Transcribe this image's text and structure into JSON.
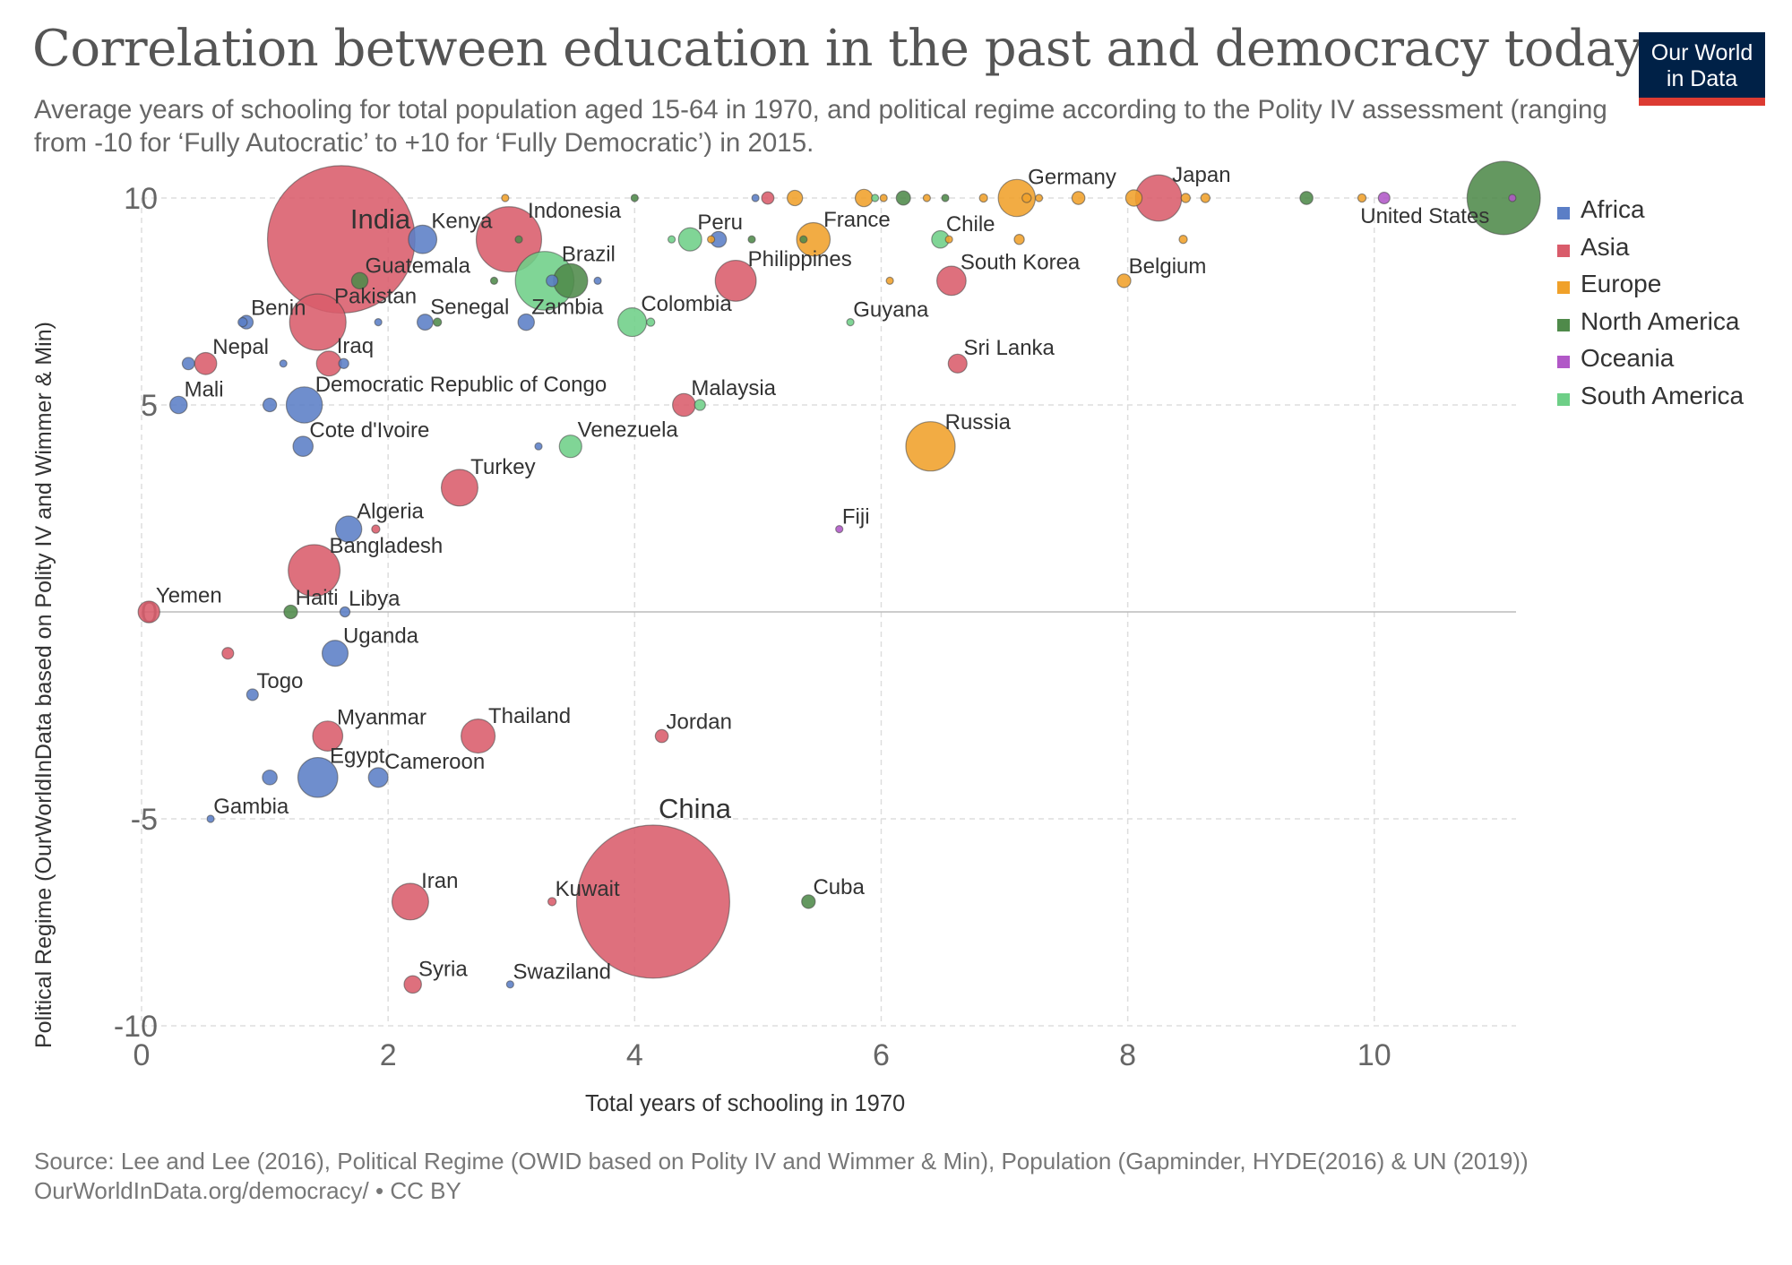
{
  "title": "Correlation between education in the past and democracy today",
  "subtitle": "Average years of schooling for total population aged 15-64 in 1970, and political regime according to the Polity IV assessment (ranging from -10 for ‘Fully Autocratic’ to +10 for ‘Fully Democratic’) in 2015.",
  "logo": {
    "line1": "Our World",
    "line2": "in Data",
    "bg": "#002147",
    "bar": "#dc3b32"
  },
  "source": {
    "line1": "Source: Lee and Lee (2016), Political Regime (OWID based on Polity IV and Wimmer & Min), Population (Gapminder, HYDE(2016) & UN (2019))",
    "line2": "OurWorldInData.org/democracy/ • CC BY"
  },
  "legend": [
    {
      "name": "Africa",
      "color": "#5b7ec6"
    },
    {
      "name": "Asia",
      "color": "#d95c6b"
    },
    {
      "name": "Europe",
      "color": "#f0a12a"
    },
    {
      "name": "North America",
      "color": "#4f8a4a"
    },
    {
      "name": "Oceania",
      "color": "#b158c7"
    },
    {
      "name": "South America",
      "color": "#6ecf87"
    }
  ],
  "chart_data": {
    "type": "scatter",
    "title": "Correlation between education in the past and democracy today",
    "xlabel": "Total years of schooling in 1970",
    "ylabel": "Political Regime (OurWorldInData based on Polity IV and Wimmer & Min)",
    "xlim": [
      0,
      11.15
    ],
    "ylim": [
      -10,
      10
    ],
    "xticks": [
      0,
      2,
      4,
      6,
      8,
      10
    ],
    "yticks": [
      -10,
      -5,
      0,
      5,
      10
    ],
    "grid": true,
    "legend_position": "right",
    "size_encoding": "population",
    "points": [
      {
        "label": "India",
        "x": 1.62,
        "y": 9,
        "region": "Asia",
        "size": 1300
      },
      {
        "label": "China",
        "x": 4.15,
        "y": -7,
        "region": "Asia",
        "size": 1400
      },
      {
        "label": "United States",
        "x": 11.05,
        "y": 10,
        "region": "North America",
        "size": 320
      },
      {
        "label": "Indonesia",
        "x": 2.98,
        "y": 9,
        "region": "Asia",
        "size": 255
      },
      {
        "label": "Brazil",
        "x": 3.27,
        "y": 8,
        "region": "South America",
        "size": 205
      },
      {
        "label": "Pakistan",
        "x": 1.43,
        "y": 7,
        "region": "Asia",
        "size": 190
      },
      {
        "label": "Bangladesh",
        "x": 1.4,
        "y": 1,
        "region": "Asia",
        "size": 160
      },
      {
        "label": "Russia",
        "x": 6.4,
        "y": 4,
        "region": "Europe",
        "size": 145
      },
      {
        "label": "Japan",
        "x": 8.25,
        "y": 10,
        "region": "Asia",
        "size": 127
      },
      {
        "label": "Philippines",
        "x": 4.82,
        "y": 8,
        "region": "Asia",
        "size": 100
      },
      {
        "label": "Egypt",
        "x": 1.43,
        "y": -4,
        "region": "Africa",
        "size": 95
      },
      {
        "label": "Democratic Republic of Congo",
        "x": 1.32,
        "y": 5,
        "region": "Africa",
        "size": 78
      },
      {
        "label": "Iran",
        "x": 2.18,
        "y": -7,
        "region": "Asia",
        "size": 80
      },
      {
        "label": "Turkey",
        "x": 2.58,
        "y": 3,
        "region": "Asia",
        "size": 80
      },
      {
        "label": "Germany",
        "x": 7.1,
        "y": 10,
        "region": "Europe",
        "size": 82
      },
      {
        "label": "Thailand",
        "x": 2.73,
        "y": -3,
        "region": "Asia",
        "size": 69
      },
      {
        "label": "France",
        "x": 5.45,
        "y": 9,
        "region": "Europe",
        "size": 67
      },
      {
        "label": "Myanmar",
        "x": 1.51,
        "y": -3,
        "region": "Asia",
        "size": 54
      },
      {
        "label": "South Korea",
        "x": 6.57,
        "y": 8,
        "region": "Asia",
        "size": 51
      },
      {
        "label": "Colombia",
        "x": 3.98,
        "y": 7,
        "region": "South America",
        "size": 49
      },
      {
        "label": "Kenya",
        "x": 2.28,
        "y": 9,
        "region": "Africa",
        "size": 48
      },
      {
        "label": "Iraq",
        "x": 1.52,
        "y": 6,
        "region": "Asia",
        "size": 37
      },
      {
        "label": "Uganda",
        "x": 1.57,
        "y": -1,
        "region": "Africa",
        "size": 40
      },
      {
        "label": "Algeria",
        "x": 1.68,
        "y": 2,
        "region": "Africa",
        "size": 41
      },
      {
        "label": "Peru",
        "x": 4.45,
        "y": 9,
        "region": "South America",
        "size": 32
      },
      {
        "label": "Malaysia",
        "x": 4.4,
        "y": 5,
        "region": "Asia",
        "size": 31
      },
      {
        "label": "Venezuela",
        "x": 3.48,
        "y": 4,
        "region": "South America",
        "size": 30
      },
      {
        "label": "Cameroon",
        "x": 1.92,
        "y": -4,
        "region": "Africa",
        "size": 23
      },
      {
        "label": "Cote d'Ivoire",
        "x": 1.31,
        "y": 4,
        "region": "Africa",
        "size": 24
      },
      {
        "label": "Nepal",
        "x": 0.52,
        "y": 6,
        "region": "Asia",
        "size": 29
      },
      {
        "label": "Yemen",
        "x": 0.06,
        "y": 0,
        "region": "Asia",
        "size": 28
      },
      {
        "label": "Mali",
        "x": 0.3,
        "y": 5,
        "region": "Africa",
        "size": 18
      },
      {
        "label": "Chile",
        "x": 6.48,
        "y": 9,
        "region": "South America",
        "size": 18
      },
      {
        "label": "Guatemala",
        "x": 1.77,
        "y": 8,
        "region": "North America",
        "size": 16
      },
      {
        "label": "Zambia",
        "x": 3.12,
        "y": 7,
        "region": "Africa",
        "size": 16
      },
      {
        "label": "Senegal",
        "x": 2.3,
        "y": 7,
        "region": "Africa",
        "size": 15
      },
      {
        "label": "Sri Lanka",
        "x": 6.62,
        "y": 6,
        "region": "Asia",
        "size": 21
      },
      {
        "label": "Cuba",
        "x": 5.41,
        "y": -7,
        "region": "North America",
        "size": 11
      },
      {
        "label": "Benin",
        "x": 0.85,
        "y": 7,
        "region": "Africa",
        "size": 11
      },
      {
        "label": "Haiti",
        "x": 1.21,
        "y": 0,
        "region": "North America",
        "size": 11
      },
      {
        "label": "Belgium",
        "x": 7.97,
        "y": 8,
        "region": "Europe",
        "size": 11
      },
      {
        "label": "Syria",
        "x": 2.2,
        "y": -9,
        "region": "Asia",
        "size": 18
      },
      {
        "label": "Togo",
        "x": 0.9,
        "y": -2,
        "region": "Africa",
        "size": 8
      },
      {
        "label": "Libya",
        "x": 1.65,
        "y": 0,
        "region": "Africa",
        "size": 6
      },
      {
        "label": "Jordan",
        "x": 4.22,
        "y": -3,
        "region": "Asia",
        "size": 10
      },
      {
        "label": "Kuwait",
        "x": 3.33,
        "y": -7,
        "region": "Asia",
        "size": 4
      },
      {
        "label": "Guyana",
        "x": 5.75,
        "y": 7,
        "region": "South America",
        "size": 0.8
      },
      {
        "label": "Fiji",
        "x": 5.66,
        "y": 2,
        "region": "Oceania",
        "size": 0.9
      },
      {
        "label": "Gambia",
        "x": 0.56,
        "y": -5,
        "region": "Africa",
        "size": 2
      },
      {
        "label": "Swaziland",
        "x": 2.99,
        "y": -9,
        "region": "Africa",
        "size": 1.3
      },
      {
        "label": "",
        "x": 0.38,
        "y": 6,
        "region": "Africa",
        "size": 9
      },
      {
        "label": "",
        "x": 0.82,
        "y": 7,
        "region": "Africa",
        "size": 5
      },
      {
        "label": "",
        "x": 1.04,
        "y": 5,
        "region": "Africa",
        "size": 11
      },
      {
        "label": "",
        "x": 1.15,
        "y": 6,
        "region": "Africa",
        "size": 1.5
      },
      {
        "label": "",
        "x": 1.92,
        "y": 7,
        "region": "Africa",
        "size": 2
      },
      {
        "label": "",
        "x": 1.64,
        "y": 6,
        "region": "Africa",
        "size": 6
      },
      {
        "label": "",
        "x": 1.04,
        "y": -4,
        "region": "Africa",
        "size": 13
      },
      {
        "label": "",
        "x": 0.7,
        "y": -1,
        "region": "Asia",
        "size": 8
      },
      {
        "label": "",
        "x": 1.9,
        "y": 2,
        "region": "Asia",
        "size": 4
      },
      {
        "label": "",
        "x": 2.4,
        "y": 7,
        "region": "North America",
        "size": 4
      },
      {
        "label": "",
        "x": 2.86,
        "y": 8,
        "region": "North America",
        "size": 3
      },
      {
        "label": "",
        "x": 3.06,
        "y": 9,
        "region": "North America",
        "size": 3
      },
      {
        "label": "",
        "x": 3.48,
        "y": 8,
        "region": "North America",
        "size": 70
      },
      {
        "label": "",
        "x": 3.33,
        "y": 8,
        "region": "Africa",
        "size": 8
      },
      {
        "label": "",
        "x": 3.7,
        "y": 8,
        "region": "Africa",
        "size": 2
      },
      {
        "label": "",
        "x": 3.22,
        "y": 4,
        "region": "Africa",
        "size": 3
      },
      {
        "label": "",
        "x": 2.95,
        "y": 10,
        "region": "Europe",
        "size": 3
      },
      {
        "label": "",
        "x": 4.0,
        "y": 10,
        "region": "North America",
        "size": 2
      },
      {
        "label": "",
        "x": 4.13,
        "y": 7,
        "region": "South America",
        "size": 4
      },
      {
        "label": "",
        "x": 4.53,
        "y": 5,
        "region": "South America",
        "size": 7
      },
      {
        "label": "",
        "x": 4.3,
        "y": 9,
        "region": "South America",
        "size": 3
      },
      {
        "label": "",
        "x": 4.68,
        "y": 9,
        "region": "Africa",
        "size": 15
      },
      {
        "label": "",
        "x": 4.62,
        "y": 9,
        "region": "Europe",
        "size": 3
      },
      {
        "label": "",
        "x": 4.95,
        "y": 9,
        "region": "North America",
        "size": 3
      },
      {
        "label": "",
        "x": 4.98,
        "y": 10,
        "region": "Africa",
        "size": 1
      },
      {
        "label": "",
        "x": 5.08,
        "y": 10,
        "region": "Asia",
        "size": 9
      },
      {
        "label": "",
        "x": 5.3,
        "y": 10,
        "region": "Europe",
        "size": 14
      },
      {
        "label": "",
        "x": 5.37,
        "y": 9,
        "region": "North America",
        "size": 2
      },
      {
        "label": "",
        "x": 5.86,
        "y": 10,
        "region": "Europe",
        "size": 18
      },
      {
        "label": "",
        "x": 5.95,
        "y": 10,
        "region": "South America",
        "size": 3
      },
      {
        "label": "",
        "x": 6.02,
        "y": 10,
        "region": "Europe",
        "size": 3
      },
      {
        "label": "",
        "x": 6.07,
        "y": 8,
        "region": "Europe",
        "size": 2
      },
      {
        "label": "",
        "x": 6.18,
        "y": 10,
        "region": "North America",
        "size": 12
      },
      {
        "label": "",
        "x": 6.37,
        "y": 10,
        "region": "Europe",
        "size": 2
      },
      {
        "label": "",
        "x": 6.52,
        "y": 10,
        "region": "North America",
        "size": 2
      },
      {
        "label": "",
        "x": 6.55,
        "y": 9,
        "region": "Europe",
        "size": 3
      },
      {
        "label": "",
        "x": 6.83,
        "y": 10,
        "region": "Europe",
        "size": 4
      },
      {
        "label": "",
        "x": 7.12,
        "y": 9,
        "region": "Europe",
        "size": 6
      },
      {
        "label": "",
        "x": 7.18,
        "y": 10,
        "region": "Europe",
        "size": 5
      },
      {
        "label": "",
        "x": 7.28,
        "y": 10,
        "region": "Europe",
        "size": 3
      },
      {
        "label": "",
        "x": 7.6,
        "y": 10,
        "region": "Europe",
        "size": 10
      },
      {
        "label": "",
        "x": 8.05,
        "y": 10,
        "region": "Europe",
        "size": 16
      },
      {
        "label": "",
        "x": 8.45,
        "y": 9,
        "region": "Europe",
        "size": 4
      },
      {
        "label": "",
        "x": 8.47,
        "y": 10,
        "region": "Europe",
        "size": 5
      },
      {
        "label": "",
        "x": 8.63,
        "y": 10,
        "region": "Europe",
        "size": 5
      },
      {
        "label": "",
        "x": 9.45,
        "y": 10,
        "region": "North America",
        "size": 10
      },
      {
        "label": "",
        "x": 9.9,
        "y": 10,
        "region": "Europe",
        "size": 4
      },
      {
        "label": "",
        "x": 10.08,
        "y": 10,
        "region": "Oceania",
        "size": 8
      },
      {
        "label": "",
        "x": 11.12,
        "y": 10,
        "region": "Oceania",
        "size": 2
      }
    ]
  }
}
